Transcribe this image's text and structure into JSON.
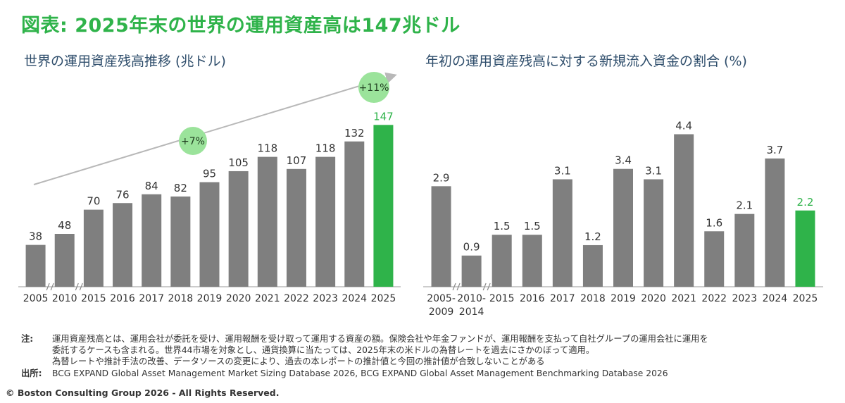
{
  "title": "図表: 2025年末の世界の運用資産高は147兆ドル",
  "chart_data": [
    {
      "type": "bar",
      "title": "世界の運用資産残高推移 (兆ドル)",
      "categories": [
        "2005",
        "2010",
        "2015",
        "2016",
        "2017",
        "2018",
        "2019",
        "2020",
        "2021",
        "2022",
        "2023",
        "2024",
        "2025"
      ],
      "values": [
        38,
        48,
        70,
        76,
        84,
        82,
        95,
        105,
        118,
        107,
        118,
        132,
        147
      ],
      "value_labels": [
        "38",
        "48",
        "70",
        "76",
        "84",
        "82",
        "95",
        "105",
        "118",
        "107",
        "118",
        "132",
        "147"
      ],
      "ylim": [
        0,
        160
      ],
      "axis_breaks_after": [
        "2005",
        "2010"
      ],
      "highlight_category": "2025",
      "annotations": [
        {
          "text": "+7%",
          "from": "2005",
          "to": "2024"
        },
        {
          "text": "+11%",
          "from": "2024",
          "to": "2025"
        }
      ],
      "colors": {
        "bar": "#7f7f7f",
        "highlight": "#2fb34a",
        "badge": "#9be39b",
        "trend_arrow": "#b8b8b8"
      },
      "grid": false
    },
    {
      "type": "bar",
      "title": "年初の運用資産残高に対する新規流入資金の割合 (%)",
      "categories": [
        [
          "2005-",
          "2009"
        ],
        [
          "2010-",
          "2014"
        ],
        [
          "2015"
        ],
        [
          "2016"
        ],
        [
          "2017"
        ],
        [
          "2018"
        ],
        [
          "2019"
        ],
        [
          "2020"
        ],
        [
          "2021"
        ],
        [
          "2022"
        ],
        [
          "2023"
        ],
        [
          "2024"
        ],
        [
          "2025"
        ]
      ],
      "values": [
        2.9,
        0.9,
        1.5,
        1.5,
        3.1,
        1.2,
        3.4,
        3.1,
        4.4,
        1.6,
        2.1,
        3.7,
        2.2
      ],
      "value_labels": [
        "2.9",
        "0.9",
        "1.5",
        "1.5",
        "3.1",
        "1.2",
        "3.4",
        "3.1",
        "4.4",
        "1.6",
        "2.1",
        "3.7",
        "2.2"
      ],
      "ylim": [
        0,
        5
      ],
      "axis_breaks_after": [
        "2005-2009",
        "2010-2014"
      ],
      "highlight_category": "2025",
      "colors": {
        "bar": "#7f7f7f",
        "highlight": "#2fb34a"
      },
      "grid": false
    }
  ],
  "notes": {
    "label": "注:",
    "lines": [
      "運用資産残高とは、運用会社が委託を受け、運用報酬を受け取って運用する資産の額。保険会社や年金ファンドが、運用報酬を支払って自社グループの運用会社に運用を",
      "委託するケースも含まれる。世界44市場を対象とし、通貨換算に当たっては、2025年末の米ドルの為替レートを過去にさかのぼって適用。",
      "為替レートや推計手法の改善、データソースの変更により、過去の本レポートの推計値と今回の推計値が合致しないことがある"
    ]
  },
  "source": {
    "label": "出所:",
    "text": "BCG EXPAND Global Asset Management Market Sizing Database 2026, BCG EXPAND Global Asset Management Benchmarking Database 2026"
  },
  "copyright": "© Boston Consulting Group 2026 - All Rights Reserved."
}
